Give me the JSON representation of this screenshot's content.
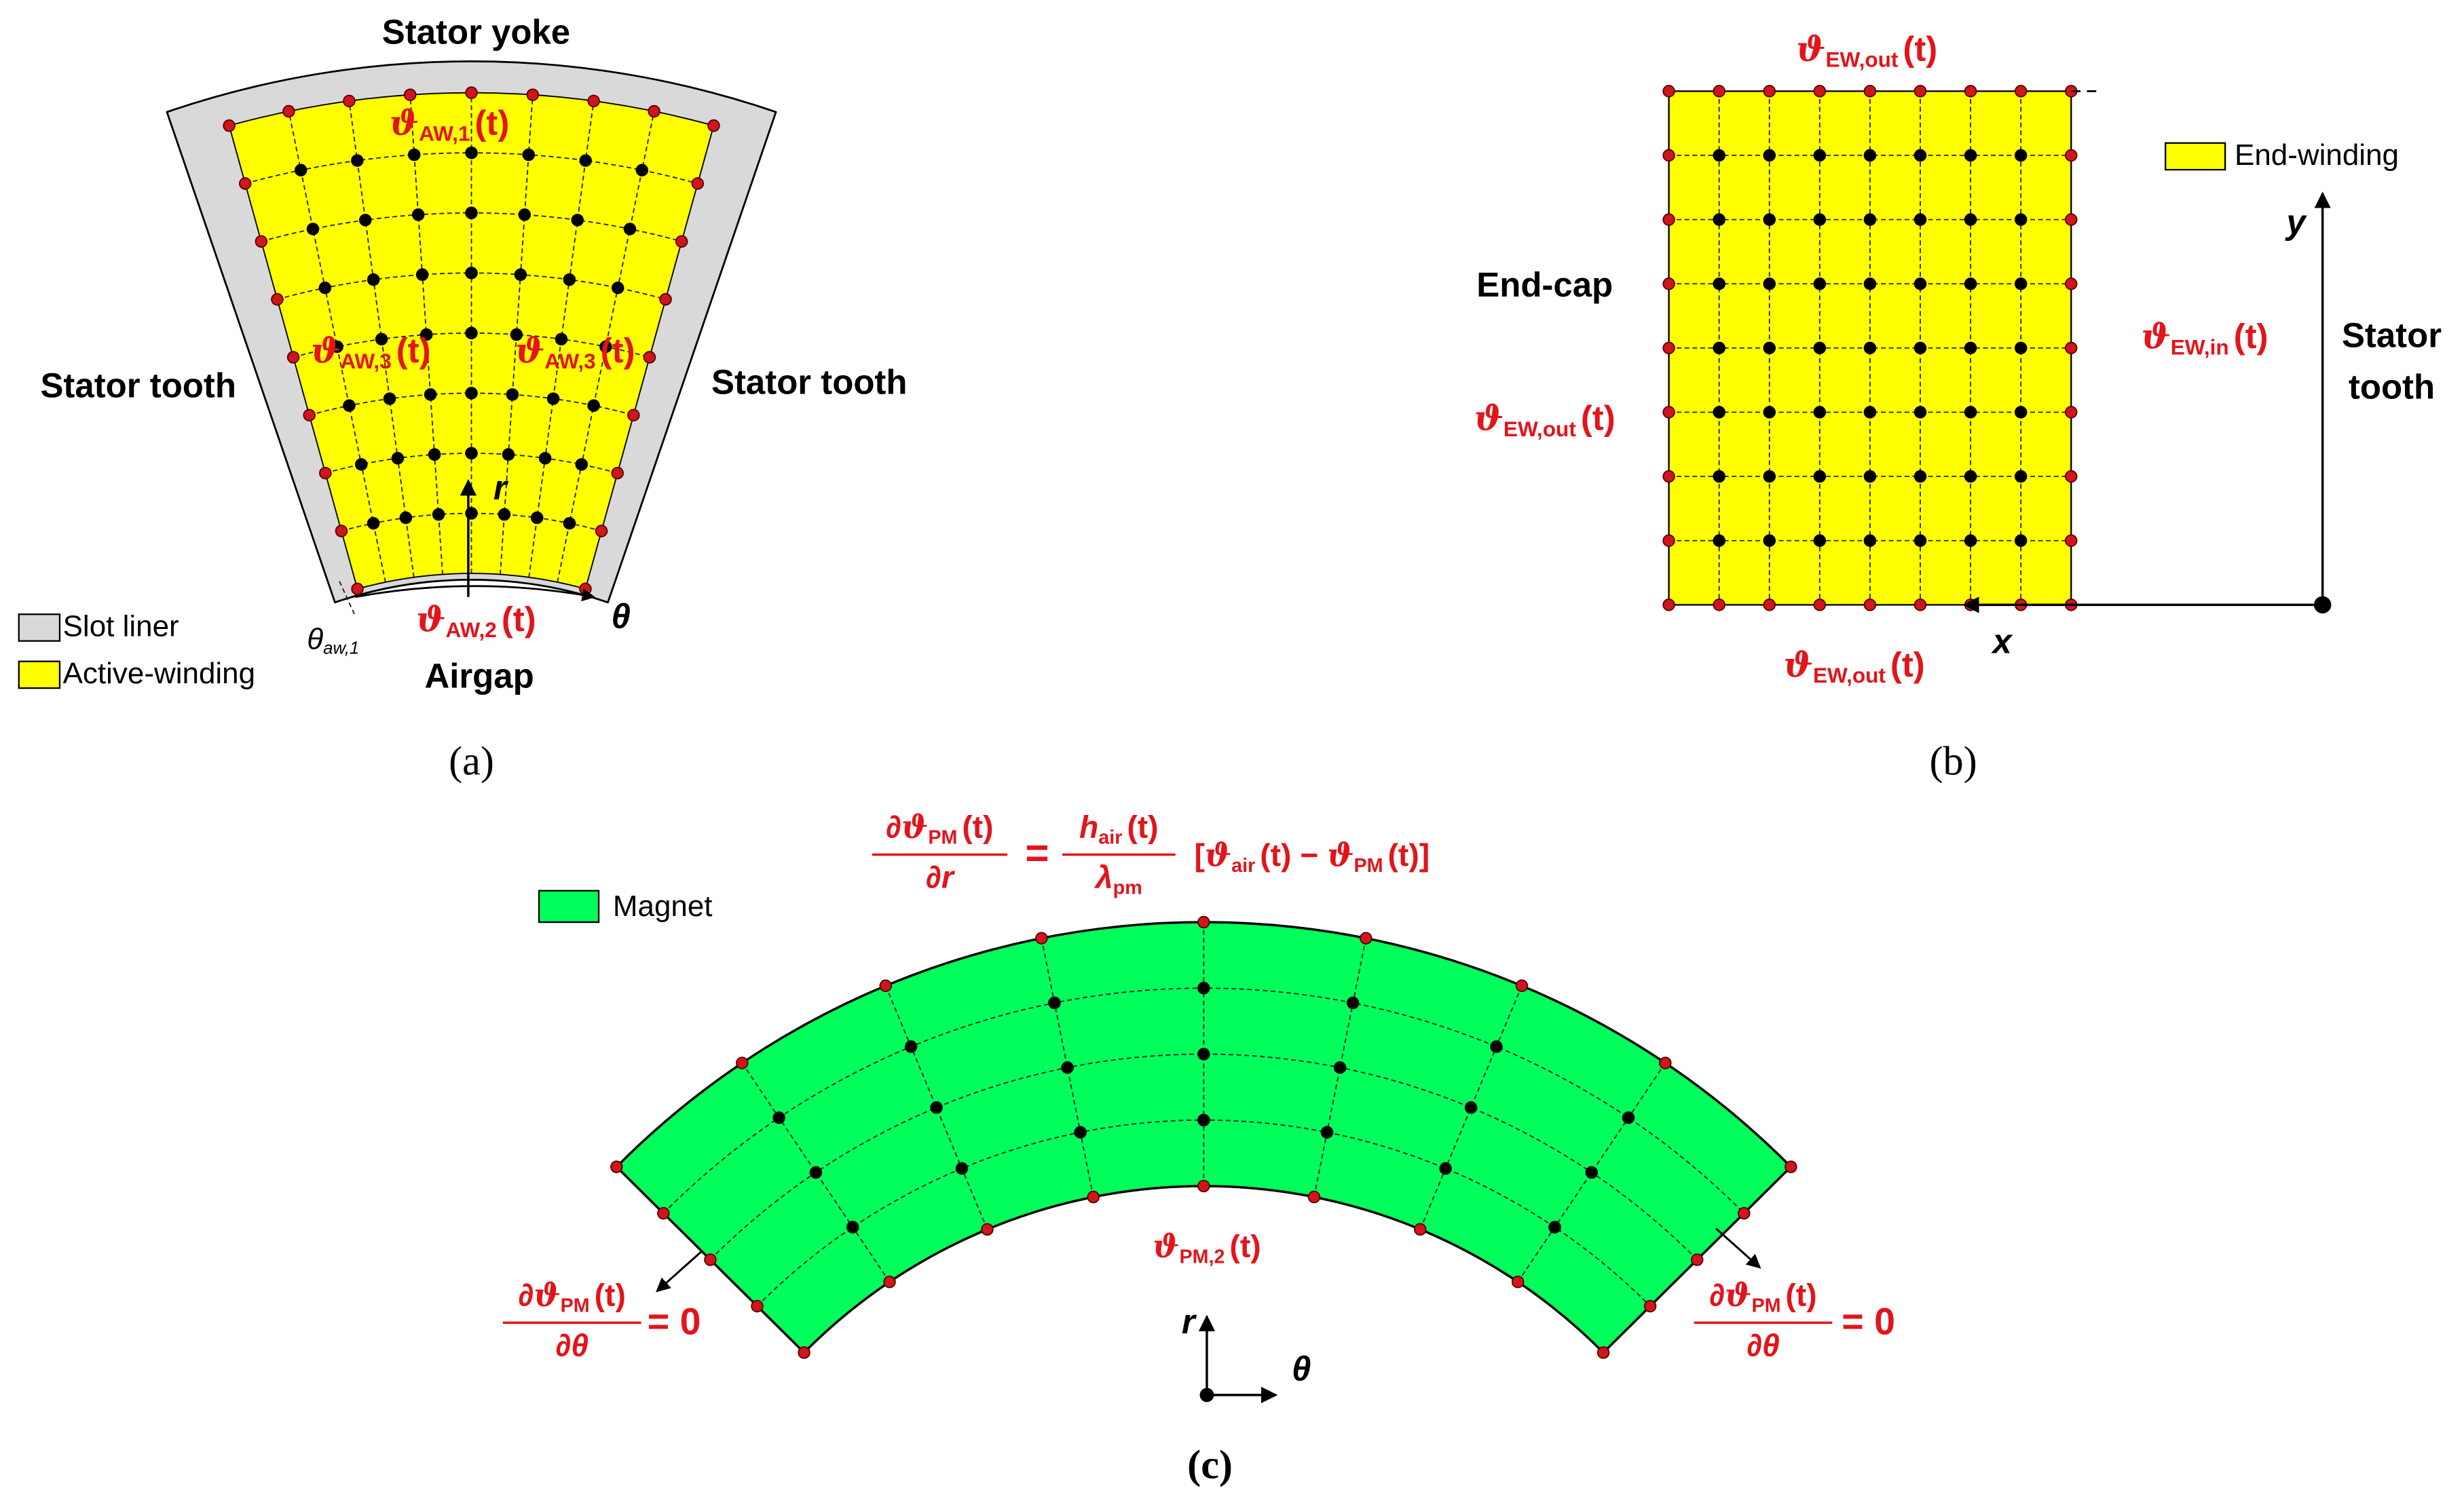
{
  "panel_a": {
    "caption": "(a)",
    "stator_yoke": "Stator yoke",
    "stator_tooth_left": "Stator tooth",
    "stator_tooth_right": "Stator tooth",
    "airgap": "Airgap",
    "r_axis": "r",
    "theta_axis": "θ",
    "theta_label": [
      {
        "t": "θ",
        "s": "it"
      },
      {
        "t": "aw,1",
        "s": "subit"
      }
    ],
    "temps": [
      [
        {
          "t": "ϑ",
          "s": "sym"
        },
        {
          "t": "AW,1",
          "s": "sub"
        },
        {
          "t": "(t)",
          "s": "n"
        }
      ],
      [
        {
          "t": "ϑ",
          "s": "sym"
        },
        {
          "t": "AW,3",
          "s": "sub"
        },
        {
          "t": "(t)",
          "s": "n"
        }
      ],
      [
        {
          "t": "ϑ",
          "s": "sym"
        },
        {
          "t": "AW,3",
          "s": "sub"
        },
        {
          "t": "(t)",
          "s": "n"
        }
      ],
      [
        {
          "t": "ϑ",
          "s": "sym"
        },
        {
          "t": "AW,2",
          "s": "sub"
        },
        {
          "t": "(t)",
          "s": "n"
        }
      ]
    ],
    "legend": [
      {
        "label": "Slot liner",
        "color": "#d9d9d9"
      },
      {
        "label": "Active-winding",
        "color": "#ffff00"
      }
    ]
  },
  "panel_b": {
    "caption": "(b)",
    "end_cap": "End-cap",
    "stator_tooth": [
      "Stator",
      "tooth"
    ],
    "x_axis": "x",
    "y_axis": "y",
    "temps": [
      [
        {
          "t": "ϑ",
          "s": "sym"
        },
        {
          "t": "EW,out",
          "s": "sub"
        },
        {
          "t": "(t)",
          "s": "n"
        }
      ],
      [
        {
          "t": "ϑ",
          "s": "sym"
        },
        {
          "t": "EW,out",
          "s": "sub"
        },
        {
          "t": "(t)",
          "s": "n"
        }
      ],
      [
        {
          "t": "ϑ",
          "s": "sym"
        },
        {
          "t": "EW,in",
          "s": "sub"
        },
        {
          "t": "(t)",
          "s": "n"
        }
      ],
      [
        {
          "t": "ϑ",
          "s": "sym"
        },
        {
          "t": "EW,out",
          "s": "sub"
        },
        {
          "t": "(t)",
          "s": "n"
        }
      ]
    ],
    "legend": [
      {
        "label": "End-winding",
        "color": "#ffff00"
      }
    ]
  },
  "panel_c": {
    "caption": "(c)",
    "r_axis": "r",
    "theta_axis": "θ",
    "legend": [
      {
        "label": "Magnet",
        "color": "#00ff5a"
      }
    ],
    "temp": [
      {
        "t": "ϑ",
        "s": "sym"
      },
      {
        "t": "PM,2",
        "s": "sub"
      },
      {
        "t": "(t)",
        "s": "n"
      }
    ],
    "top_equation": {
      "lhs_num": [
        {
          "t": "∂",
          "s": "n"
        },
        {
          "t": "ϑ",
          "s": "sym"
        },
        {
          "t": "PM",
          "s": "sub"
        },
        {
          "t": "(t)",
          "s": "n"
        }
      ],
      "lhs_den": [
        {
          "t": "∂",
          "s": "n"
        },
        {
          "t": "r",
          "s": "it"
        }
      ],
      "equals": "=",
      "rhs_num": [
        {
          "t": "h",
          "s": "it"
        },
        {
          "t": "air",
          "s": "sub"
        },
        {
          "t": "(t)",
          "s": "n"
        }
      ],
      "rhs_den": [
        {
          "t": "λ",
          "s": "it"
        },
        {
          "t": "pm",
          "s": "sub"
        }
      ],
      "bracket": [
        {
          "t": "[",
          "s": "n"
        },
        {
          "t": "ϑ",
          "s": "sym"
        },
        {
          "t": "air",
          "s": "sub"
        },
        {
          "t": "(t) − ",
          "s": "n"
        },
        {
          "t": "ϑ",
          "s": "sym"
        },
        {
          "t": "PM",
          "s": "sub"
        },
        {
          "t": "(t)]",
          "s": "n"
        }
      ]
    },
    "left_condition": {
      "num": [
        {
          "t": "∂",
          "s": "n"
        },
        {
          "t": "ϑ",
          "s": "sym"
        },
        {
          "t": "PM",
          "s": "sub"
        },
        {
          "t": "(t)",
          "s": "n"
        }
      ],
      "den": [
        {
          "t": "∂θ",
          "s": "it"
        }
      ],
      "rhs": "= 0"
    },
    "right_condition": {
      "num": [
        {
          "t": "∂",
          "s": "n"
        },
        {
          "t": "ϑ",
          "s": "sym"
        },
        {
          "t": "PM",
          "s": "sub"
        },
        {
          "t": "(t)",
          "s": "n"
        }
      ],
      "den": [
        {
          "t": "∂θ",
          "s": "it"
        }
      ],
      "rhs": "= 0"
    }
  }
}
